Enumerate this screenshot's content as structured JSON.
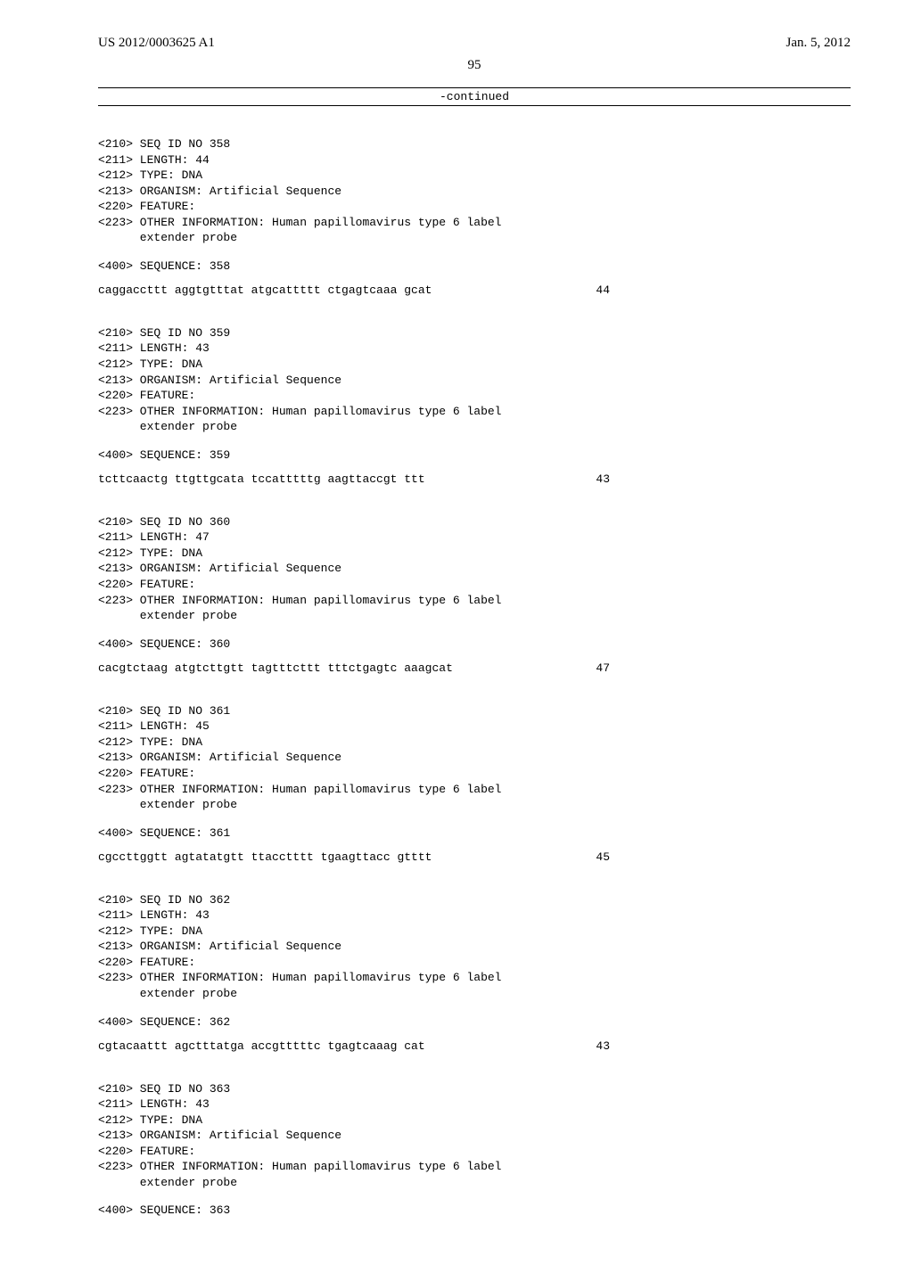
{
  "header": {
    "pub_number": "US 2012/0003625 A1",
    "pub_date": "Jan. 5, 2012"
  },
  "page_number": "95",
  "continued_label": "-continued",
  "sequences": [
    {
      "id_line": "<210> SEQ ID NO 358",
      "length_line": "<211> LENGTH: 44",
      "type_line": "<212> TYPE: DNA",
      "organism_line": "<213> ORGANISM: Artificial Sequence",
      "feature_line": "<220> FEATURE:",
      "other_info_line": "<223> OTHER INFORMATION: Human papillomavirus type 6 label",
      "other_info_cont": "      extender probe",
      "sequence_label": "<400> SEQUENCE: 358",
      "sequence_text": "caggaccttt aggtgtttat atgcattttt ctgagtcaaa gcat",
      "sequence_length": "44",
      "has_sequence": true
    },
    {
      "id_line": "<210> SEQ ID NO 359",
      "length_line": "<211> LENGTH: 43",
      "type_line": "<212> TYPE: DNA",
      "organism_line": "<213> ORGANISM: Artificial Sequence",
      "feature_line": "<220> FEATURE:",
      "other_info_line": "<223> OTHER INFORMATION: Human papillomavirus type 6 label",
      "other_info_cont": "      extender probe",
      "sequence_label": "<400> SEQUENCE: 359",
      "sequence_text": "tcttcaactg ttgttgcata tccatttttg aagttaccgt ttt",
      "sequence_length": "43",
      "has_sequence": true
    },
    {
      "id_line": "<210> SEQ ID NO 360",
      "length_line": "<211> LENGTH: 47",
      "type_line": "<212> TYPE: DNA",
      "organism_line": "<213> ORGANISM: Artificial Sequence",
      "feature_line": "<220> FEATURE:",
      "other_info_line": "<223> OTHER INFORMATION: Human papillomavirus type 6 label",
      "other_info_cont": "      extender probe",
      "sequence_label": "<400> SEQUENCE: 360",
      "sequence_text": "cacgtctaag atgtcttgtt tagtttcttt tttctgagtc aaagcat",
      "sequence_length": "47",
      "has_sequence": true
    },
    {
      "id_line": "<210> SEQ ID NO 361",
      "length_line": "<211> LENGTH: 45",
      "type_line": "<212> TYPE: DNA",
      "organism_line": "<213> ORGANISM: Artificial Sequence",
      "feature_line": "<220> FEATURE:",
      "other_info_line": "<223> OTHER INFORMATION: Human papillomavirus type 6 label",
      "other_info_cont": "      extender probe",
      "sequence_label": "<400> SEQUENCE: 361",
      "sequence_text": "cgccttggtt agtatatgtt ttacctttt tgaagttacc gtttt",
      "sequence_length": "45",
      "has_sequence": true
    },
    {
      "id_line": "<210> SEQ ID NO 362",
      "length_line": "<211> LENGTH: 43",
      "type_line": "<212> TYPE: DNA",
      "organism_line": "<213> ORGANISM: Artificial Sequence",
      "feature_line": "<220> FEATURE:",
      "other_info_line": "<223> OTHER INFORMATION: Human papillomavirus type 6 label",
      "other_info_cont": "      extender probe",
      "sequence_label": "<400> SEQUENCE: 362",
      "sequence_text": "cgtacaattt agctttatga accgtttttc tgagtcaaag cat",
      "sequence_length": "43",
      "has_sequence": true
    },
    {
      "id_line": "<210> SEQ ID NO 363",
      "length_line": "<211> LENGTH: 43",
      "type_line": "<212> TYPE: DNA",
      "organism_line": "<213> ORGANISM: Artificial Sequence",
      "feature_line": "<220> FEATURE:",
      "other_info_line": "<223> OTHER INFORMATION: Human papillomavirus type 6 label",
      "other_info_cont": "      extender probe",
      "sequence_label": "<400> SEQUENCE: 363",
      "sequence_text": "",
      "sequence_length": "",
      "has_sequence": false
    }
  ]
}
